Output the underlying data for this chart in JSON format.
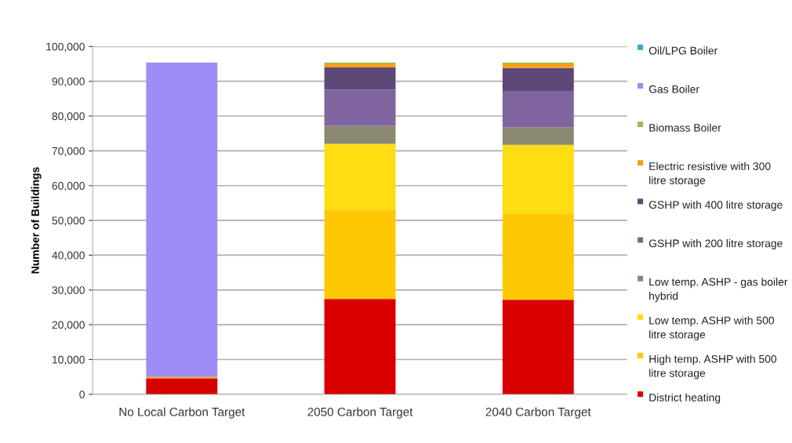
{
  "chart_data": {
    "type": "bar",
    "stacked": true,
    "ylabel": "Number of Buildings",
    "categories": [
      "No Local Carbon Target",
      "2050 Carbon Target",
      "2040 Carbon Target"
    ],
    "series": [
      {
        "name": "District heating",
        "color": "#d90000",
        "values": [
          4500,
          27400,
          27200
        ]
      },
      {
        "name": "High temp. ASHP with 500 litre storage",
        "color": "#fec805",
        "values": [
          0,
          25700,
          24800
        ]
      },
      {
        "name": "Low temp. ASHP with 500 litre storage",
        "color": "#fedd12",
        "values": [
          0,
          18900,
          19700
        ]
      },
      {
        "name": "Low temp. ASHP - gas boiler hybrid",
        "color": "#8a8873",
        "values": [
          0,
          5200,
          5100
        ]
      },
      {
        "name": "GSHP with 200 litre storage",
        "color": "#8064a0",
        "values": [
          0,
          10400,
          10400
        ]
      },
      {
        "name": "GSHP with 400 litre storage",
        "color": "#5e4878",
        "values": [
          0,
          6400,
          6600
        ]
      },
      {
        "name": "Electric resistive with 300 litre storage",
        "color": "#f5a01a",
        "values": [
          500,
          1100,
          1300
        ]
      },
      {
        "name": "Biomass Boiler",
        "color": "#92c050",
        "values": [
          0,
          300,
          300
        ]
      },
      {
        "name": "Gas Boiler",
        "color": "#a08cf5",
        "values": [
          90400,
          0,
          0
        ]
      },
      {
        "name": "Oil/LPG Boiler",
        "color": "#3caac8",
        "values": [
          0,
          0,
          0
        ]
      }
    ],
    "ylim": [
      0,
      100000
    ],
    "yticks": [
      {
        "value": 0,
        "label": "0"
      },
      {
        "value": 10000,
        "label": "10,000"
      },
      {
        "value": 20000,
        "label": "20,000"
      },
      {
        "value": 30000,
        "label": "30,000"
      },
      {
        "value": 40000,
        "label": "40,000"
      },
      {
        "value": 50000,
        "label": "50,000"
      },
      {
        "value": 60000,
        "label": "60,000"
      },
      {
        "value": 70000,
        "label": "70,000"
      },
      {
        "value": 80000,
        "label": "80,000"
      },
      {
        "value": 90000,
        "label": "90,000"
      },
      {
        "value": 100000,
        "label": "100,000"
      }
    ],
    "grid": "y",
    "legend": "right"
  }
}
